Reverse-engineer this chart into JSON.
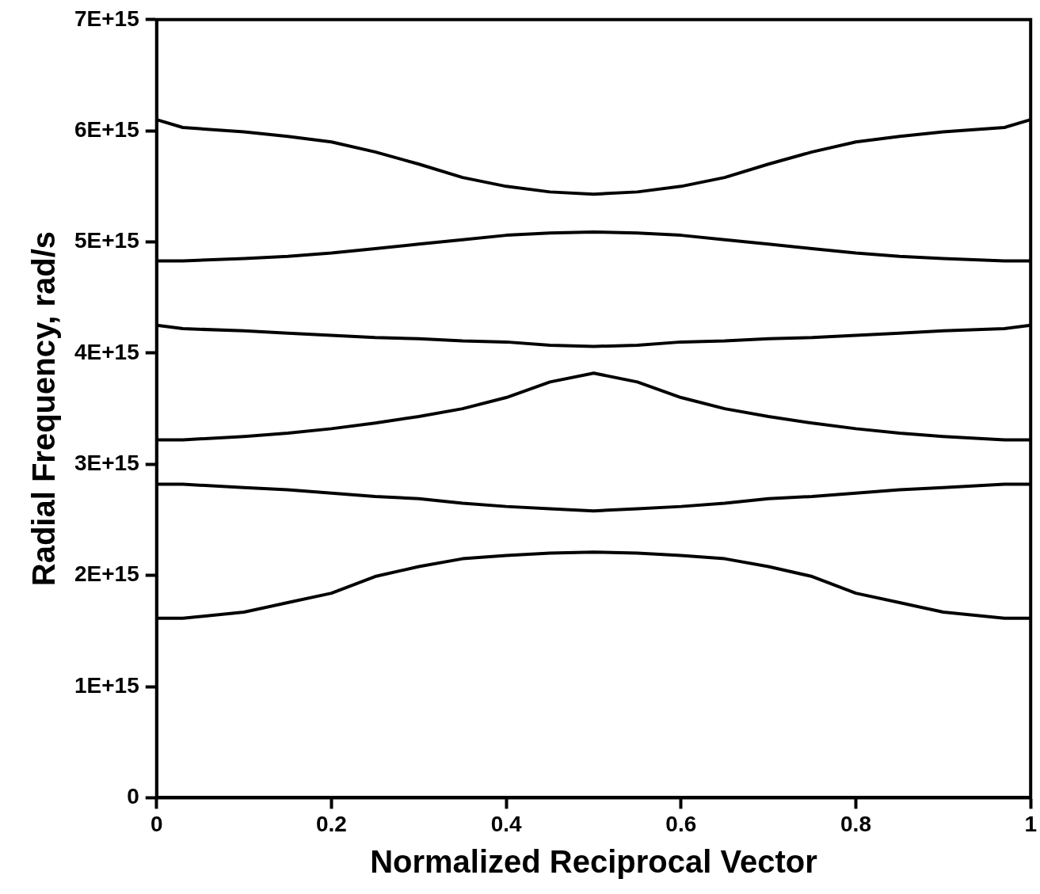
{
  "chart_data": {
    "type": "line",
    "xlabel": "Normalized Reciprocal Vector",
    "ylabel": "Radial Frequency, rad/s",
    "x": [
      0,
      0.03,
      0.1,
      0.15,
      0.2,
      0.25,
      0.3,
      0.35,
      0.4,
      0.45,
      0.5,
      0.55,
      0.6,
      0.65,
      0.7,
      0.75,
      0.8,
      0.85,
      0.9,
      0.97,
      1
    ],
    "series": [
      {
        "color": "#000000",
        "values": [
          1615000000000000.0,
          1615000000000000.0,
          1670000000000000.0,
          1755000000000000.0,
          1840000000000000.0,
          1990000000000000.0,
          2080000000000000.0,
          2150000000000000.0,
          2180000000000000.0,
          2200000000000000.0,
          2210000000000000.0,
          2200000000000000.0,
          2180000000000000.0,
          2150000000000000.0,
          2080000000000000.0,
          1990000000000000.0,
          1840000000000000.0,
          1755000000000000.0,
          1670000000000000.0,
          1615000000000000.0,
          1615000000000000.0
        ]
      },
      {
        "color": "#000000",
        "values": [
          2820000000000000.0,
          2820000000000000.0,
          2790000000000000.0,
          2770000000000000.0,
          2740000000000000.0,
          2710000000000000.0,
          2690000000000000.0,
          2650000000000000.0,
          2620000000000000.0,
          2600000000000000.0,
          2580000000000000.0,
          2600000000000000.0,
          2620000000000000.0,
          2650000000000000.0,
          2690000000000000.0,
          2710000000000000.0,
          2740000000000000.0,
          2770000000000000.0,
          2790000000000000.0,
          2820000000000000.0,
          2820000000000000.0
        ]
      },
      {
        "color": "#000000",
        "values": [
          3220000000000000.0,
          3220000000000000.0,
          3250000000000000.0,
          3280000000000000.0,
          3320000000000000.0,
          3370000000000000.0,
          3430000000000000.0,
          3500000000000000.0,
          3600000000000000.0,
          3740000000000000.0,
          3820000000000000.0,
          3740000000000000.0,
          3600000000000000.0,
          3500000000000000.0,
          3430000000000000.0,
          3370000000000000.0,
          3320000000000000.0,
          3280000000000000.0,
          3250000000000000.0,
          3220000000000000.0,
          3220000000000000.0
        ]
      },
      {
        "color": "#000000",
        "values": [
          4250000000000000.0,
          4220000000000000.0,
          4200000000000000.0,
          4180000000000000.0,
          4160000000000000.0,
          4140000000000000.0,
          4130000000000000.0,
          4110000000000000.0,
          4100000000000000.0,
          4070000000000000.0,
          4060000000000000.0,
          4070000000000000.0,
          4100000000000000.0,
          4110000000000000.0,
          4130000000000000.0,
          4140000000000000.0,
          4160000000000000.0,
          4180000000000000.0,
          4200000000000000.0,
          4220000000000000.0,
          4250000000000000.0
        ]
      },
      {
        "color": "#000000",
        "values": [
          4830000000000000.0,
          4830000000000000.0,
          4850000000000000.0,
          4870000000000000.0,
          4900000000000000.0,
          4940000000000000.0,
          4980000000000000.0,
          5020000000000000.0,
          5060000000000000.0,
          5080000000000000.0,
          5090000000000000.0,
          5080000000000000.0,
          5060000000000000.0,
          5020000000000000.0,
          4980000000000000.0,
          4940000000000000.0,
          4900000000000000.0,
          4870000000000000.0,
          4850000000000000.0,
          4830000000000000.0,
          4830000000000000.0
        ]
      },
      {
        "color": "#000000",
        "values": [
          6100000000000000.0,
          6030000000000000.0,
          5990000000000000.0,
          5950000000000000.0,
          5900000000000000.0,
          5810000000000000.0,
          5700000000000000.0,
          5580000000000000.0,
          5500000000000000.0,
          5450000000000000.0,
          5430000000000000.0,
          5450000000000000.0,
          5500000000000000.0,
          5580000000000000.0,
          5700000000000000.0,
          5810000000000000.0,
          5900000000000000.0,
          5950000000000000.0,
          5990000000000000.0,
          6030000000000000.0,
          6100000000000000.0
        ]
      }
    ],
    "xlim": [
      0,
      1
    ],
    "xticks": [
      0,
      0.2,
      0.4,
      0.6,
      0.8,
      1
    ],
    "ylim": [
      0,
      7000000000000000.0
    ],
    "yticks": [
      0,
      {
        "value": 1000000000000000.0,
        "label": "1E+15"
      },
      {
        "value": 2000000000000000.0,
        "label": "2E+15"
      },
      {
        "value": 3000000000000000.0,
        "label": "3E+15"
      },
      {
        "value": 4000000000000000.0,
        "label": "4E+15"
      },
      {
        "value": 5000000000000000.0,
        "label": "5E+15"
      },
      {
        "value": 6000000000000000.0,
        "label": "6E+15"
      },
      {
        "value": 7000000000000000.0,
        "label": "7E+15"
      }
    ],
    "grid": false,
    "legend": false,
    "marker": "none",
    "line_style": "solid"
  }
}
